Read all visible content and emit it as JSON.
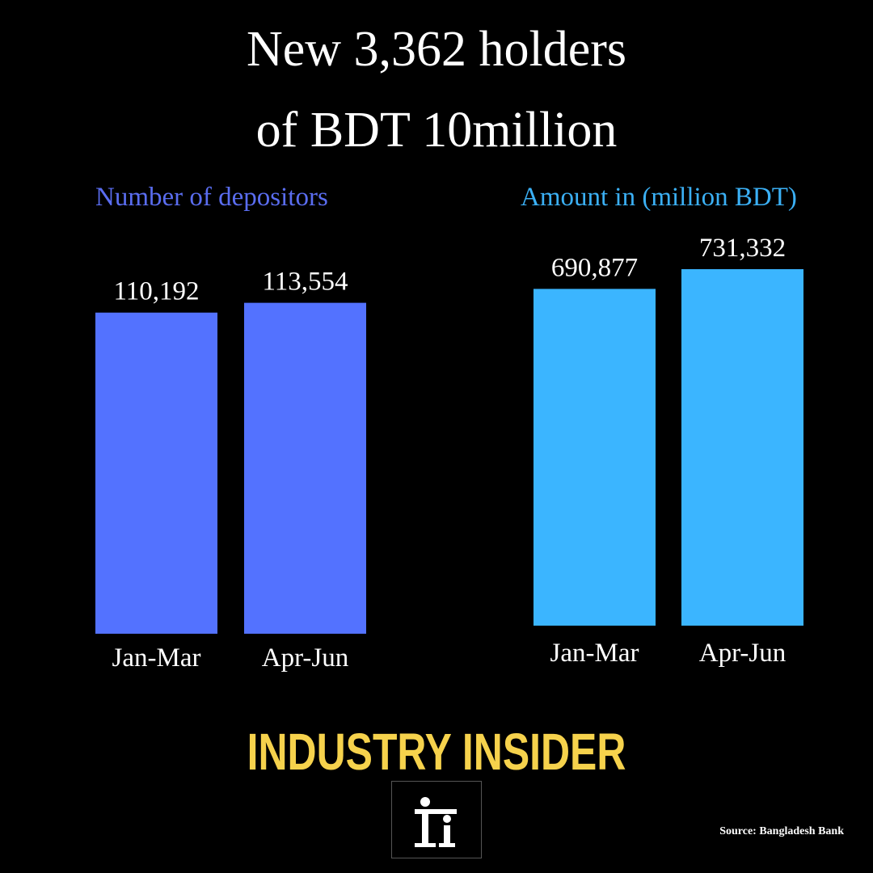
{
  "title": {
    "line1": "New 3,362 holders",
    "line2": "of BDT 10million"
  },
  "brand": {
    "name": "INDUSTRY INSIDER",
    "source": "Source: Bangladesh Bank"
  },
  "colors": {
    "depositors_bar": "#5372ff",
    "amount_bar": "#3bb5ff",
    "heading_depositors": "#5a6df0",
    "heading_amount": "#3bb0f5",
    "brand": "#f6d24c",
    "background": "#000000"
  },
  "chart_data": [
    {
      "type": "bar",
      "title": "Number of depositors",
      "categories": [
        "Jan-Mar",
        "Apr-Jun"
      ],
      "values": [
        110192,
        113554
      ],
      "value_labels": [
        "110,192",
        "113,554"
      ],
      "xlabel": "",
      "ylabel": "",
      "ylim": [
        0,
        114000
      ],
      "grid": false
    },
    {
      "type": "bar",
      "title": "Amount in (million BDT)",
      "categories": [
        "Jan-Mar",
        "Apr-Jun"
      ],
      "values": [
        690877,
        731332
      ],
      "value_labels": [
        "690,877",
        "731,332"
      ],
      "xlabel": "",
      "ylabel": "",
      "ylim": [
        0,
        731332
      ],
      "grid": false
    }
  ]
}
